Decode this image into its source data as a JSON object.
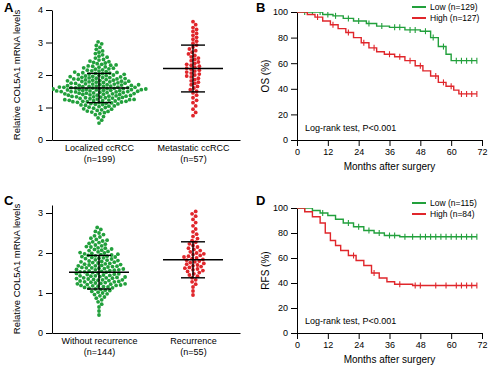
{
  "chart_data": [
    {
      "type": "dot",
      "title": "A",
      "y_label": "Relative COL5A1 mRNA levels",
      "categories": [
        "Localized ccRCC (n=199)",
        "Metastatic ccRCC (n=57)"
      ],
      "colors": [
        "#22a03c",
        "#e0262b"
      ],
      "values": [
        [
          0.52,
          0.61,
          0.68,
          0.72,
          0.78,
          0.81,
          0.84,
          0.86,
          0.88,
          0.89,
          0.91,
          0.93,
          0.95,
          0.96,
          0.98,
          1.0,
          1.01,
          1.03,
          1.04,
          1.05,
          1.07,
          1.08,
          1.09,
          1.1,
          1.11,
          1.12,
          1.13,
          1.14,
          1.15,
          1.16,
          1.17,
          1.18,
          1.18,
          1.19,
          1.19,
          1.2,
          1.21,
          1.21,
          1.22,
          1.23,
          1.24,
          1.24,
          1.25,
          1.26,
          1.27,
          1.27,
          1.28,
          1.29,
          1.3,
          1.3,
          1.31,
          1.32,
          1.33,
          1.33,
          1.34,
          1.35,
          1.35,
          1.36,
          1.37,
          1.38,
          1.38,
          1.39,
          1.4,
          1.4,
          1.41,
          1.42,
          1.42,
          1.43,
          1.44,
          1.44,
          1.45,
          1.46,
          1.46,
          1.47,
          1.48,
          1.48,
          1.49,
          1.49,
          1.49,
          1.5,
          1.51,
          1.51,
          1.52,
          1.52,
          1.53,
          1.53,
          1.54,
          1.54,
          1.55,
          1.55,
          1.56,
          1.56,
          1.57,
          1.57,
          1.58,
          1.58,
          1.59,
          1.59,
          1.6,
          1.6,
          1.61,
          1.61,
          1.62,
          1.62,
          1.63,
          1.63,
          1.64,
          1.64,
          1.65,
          1.65,
          1.66,
          1.66,
          1.67,
          1.68,
          1.68,
          1.69,
          1.7,
          1.7,
          1.71,
          1.72,
          1.72,
          1.73,
          1.74,
          1.75,
          1.75,
          1.76,
          1.77,
          1.78,
          1.79,
          1.79,
          1.8,
          1.81,
          1.81,
          1.82,
          1.83,
          1.84,
          1.84,
          1.85,
          1.86,
          1.87,
          1.88,
          1.88,
          1.89,
          1.9,
          1.91,
          1.92,
          1.92,
          1.93,
          1.94,
          1.95,
          1.96,
          1.97,
          1.98,
          1.99,
          2.0,
          2.01,
          2.02,
          2.03,
          2.04,
          2.05,
          2.06,
          2.07,
          2.08,
          2.09,
          2.1,
          2.12,
          2.13,
          2.15,
          2.16,
          2.18,
          2.19,
          2.21,
          2.22,
          2.24,
          2.25,
          2.27,
          2.28,
          2.3,
          2.31,
          2.33,
          2.35,
          2.37,
          2.39,
          2.41,
          2.43,
          2.46,
          2.48,
          2.52,
          2.55,
          2.58,
          2.62,
          2.66,
          2.7,
          2.74,
          2.79,
          2.85,
          2.91,
          2.96,
          3.02
        ],
        [
          0.75,
          0.85,
          0.95,
          1.05,
          1.15,
          1.22,
          1.3,
          1.38,
          1.45,
          1.5,
          1.55,
          1.6,
          1.65,
          1.7,
          1.74,
          1.78,
          1.82,
          1.86,
          1.9,
          1.94,
          1.97,
          2.0,
          2.03,
          2.06,
          2.09,
          2.12,
          2.15,
          2.18,
          2.21,
          2.24,
          2.27,
          2.3,
          2.33,
          2.36,
          2.4,
          2.44,
          2.48,
          2.52,
          2.56,
          2.6,
          2.65,
          2.7,
          2.75,
          2.8,
          2.86,
          2.92,
          2.98,
          3.04,
          3.1,
          3.16,
          3.22,
          3.28,
          3.34,
          3.4,
          3.46,
          3.55,
          3.64
        ]
      ],
      "mean": [
        1.6,
        2.2
      ],
      "sd": [
        0.45,
        0.72
      ],
      "ylim": [
        0,
        4
      ],
      "yticks": [
        0,
        1,
        2,
        3,
        4
      ],
      "grid": false
    },
    {
      "type": "line",
      "title": "B",
      "x_label": "Months after surgery",
      "y_label": "OS (%)",
      "xlim": [
        0,
        72
      ],
      "xticks": [
        0,
        12,
        24,
        36,
        48,
        60,
        72
      ],
      "ylim": [
        0,
        100
      ],
      "yticks": [
        0,
        20,
        40,
        60,
        80,
        100
      ],
      "line_style": "step",
      "marker": "censor",
      "legend": "top-right",
      "grid": false,
      "annotation": "Log-rank test, P<0.001",
      "series": [
        {
          "name": "Low (n=129)",
          "color": "#22a03c",
          "x": [
            0,
            10,
            14,
            18,
            22,
            27,
            31,
            36,
            42,
            48,
            52,
            55,
            58,
            60,
            70
          ],
          "values": [
            100,
            98,
            97,
            95,
            93,
            91,
            89,
            88,
            86,
            85,
            80,
            73,
            67,
            62,
            62
          ],
          "censored": [
            3,
            6,
            9,
            12,
            15,
            20,
            24,
            28,
            33,
            38,
            40,
            44,
            46,
            50,
            53,
            57,
            62,
            64,
            66,
            68,
            70
          ]
        },
        {
          "name": "High (n=127)",
          "color": "#e0262b",
          "x": [
            0,
            4,
            7,
            10,
            13,
            16,
            19,
            22,
            25,
            28,
            31,
            34,
            38,
            42,
            46,
            49,
            52,
            55,
            58,
            61,
            63,
            70
          ],
          "values": [
            100,
            98,
            96,
            93,
            90,
            87,
            84,
            80,
            76,
            72,
            69,
            67,
            65,
            62,
            58,
            54,
            50,
            45,
            42,
            39,
            36,
            36
          ],
          "censored": [
            8,
            14,
            20,
            26,
            30,
            36,
            40,
            44,
            48,
            54,
            57,
            60,
            64,
            66,
            68,
            70
          ]
        }
      ]
    },
    {
      "type": "dot",
      "title": "C",
      "y_label": "Relative COL5A1 mRNA levels",
      "categories": [
        "Without recurrence (n=144)",
        "Recurrence (n=55)"
      ],
      "colors": [
        "#22a03c",
        "#e0262b"
      ],
      "values": [
        [
          0.45,
          0.55,
          0.65,
          0.72,
          0.78,
          0.83,
          0.87,
          0.9,
          0.93,
          0.96,
          0.98,
          1.0,
          1.02,
          1.04,
          1.06,
          1.07,
          1.09,
          1.1,
          1.12,
          1.13,
          1.14,
          1.15,
          1.16,
          1.17,
          1.18,
          1.19,
          1.19,
          1.2,
          1.21,
          1.22,
          1.23,
          1.23,
          1.24,
          1.25,
          1.26,
          1.27,
          1.28,
          1.28,
          1.29,
          1.3,
          1.31,
          1.32,
          1.33,
          1.33,
          1.34,
          1.35,
          1.36,
          1.37,
          1.38,
          1.38,
          1.39,
          1.4,
          1.41,
          1.42,
          1.43,
          1.43,
          1.44,
          1.45,
          1.46,
          1.47,
          1.48,
          1.49,
          1.5,
          1.51,
          1.52,
          1.53,
          1.53,
          1.54,
          1.55,
          1.56,
          1.57,
          1.58,
          1.58,
          1.59,
          1.6,
          1.61,
          1.62,
          1.63,
          1.63,
          1.64,
          1.65,
          1.66,
          1.67,
          1.68,
          1.68,
          1.69,
          1.7,
          1.71,
          1.72,
          1.73,
          1.74,
          1.75,
          1.76,
          1.77,
          1.78,
          1.79,
          1.8,
          1.81,
          1.82,
          1.83,
          1.85,
          1.86,
          1.87,
          1.88,
          1.89,
          1.9,
          1.91,
          1.92,
          1.93,
          1.94,
          1.95,
          1.96,
          1.97,
          1.98,
          1.99,
          2.0,
          2.01,
          2.03,
          2.04,
          2.06,
          2.07,
          2.09,
          2.1,
          2.12,
          2.13,
          2.15,
          2.16,
          2.18,
          2.2,
          2.22,
          2.24,
          2.26,
          2.28,
          2.3,
          2.32,
          2.34,
          2.37,
          2.4,
          2.43,
          2.46,
          2.5,
          2.54,
          2.59,
          2.64
        ],
        [
          0.95,
          1.05,
          1.15,
          1.22,
          1.28,
          1.33,
          1.38,
          1.42,
          1.45,
          1.48,
          1.51,
          1.54,
          1.56,
          1.58,
          1.6,
          1.62,
          1.64,
          1.66,
          1.68,
          1.7,
          1.72,
          1.74,
          1.76,
          1.78,
          1.8,
          1.82,
          1.84,
          1.86,
          1.88,
          1.9,
          1.92,
          1.94,
          1.96,
          1.98,
          2.0,
          2.03,
          2.06,
          2.09,
          2.12,
          2.15,
          2.19,
          2.23,
          2.27,
          2.31,
          2.36,
          2.41,
          2.47,
          2.53,
          2.6,
          2.68,
          2.76,
          2.84,
          2.92,
          2.98,
          3.04
        ]
      ],
      "mean": [
        1.52,
        1.83
      ],
      "sd": [
        0.42,
        0.45
      ],
      "ylim": [
        0,
        3.2
      ],
      "yticks": [
        0,
        1,
        2,
        3
      ],
      "grid": false
    },
    {
      "type": "line",
      "title": "D",
      "x_label": "Months after surgery",
      "y_label": "RFS (%)",
      "xlim": [
        0,
        72
      ],
      "xticks": [
        0,
        12,
        24,
        36,
        48,
        60,
        72
      ],
      "ylim": [
        0,
        100
      ],
      "yticks": [
        0,
        20,
        40,
        60,
        80,
        100
      ],
      "line_style": "step",
      "marker": "censor",
      "legend": "top-right",
      "grid": false,
      "annotation": "Log-rank test, P<0.001",
      "series": [
        {
          "name": "Low (n=115)",
          "color": "#22a03c",
          "x": [
            0,
            6,
            9,
            12,
            15,
            18,
            22,
            26,
            30,
            34,
            40,
            70
          ],
          "values": [
            100,
            98,
            96,
            94,
            91,
            88,
            85,
            82,
            80,
            78,
            77,
            77
          ],
          "censored": [
            3,
            10,
            20,
            24,
            28,
            32,
            36,
            38,
            42,
            45,
            48,
            50,
            52,
            54,
            56,
            58,
            60,
            62,
            64,
            66,
            68,
            70
          ]
        },
        {
          "name": "High (n=84)",
          "color": "#e0262b",
          "x": [
            0,
            3,
            6,
            9,
            11,
            13,
            15,
            17,
            20,
            23,
            26,
            29,
            32,
            35,
            38,
            45,
            70
          ],
          "values": [
            100,
            97,
            93,
            88,
            80,
            74,
            70,
            66,
            62,
            58,
            54,
            48,
            44,
            41,
            39,
            38,
            38
          ],
          "censored": [
            22,
            30,
            40,
            46,
            48,
            54,
            58,
            62,
            64,
            66,
            68,
            70
          ]
        }
      ]
    }
  ]
}
